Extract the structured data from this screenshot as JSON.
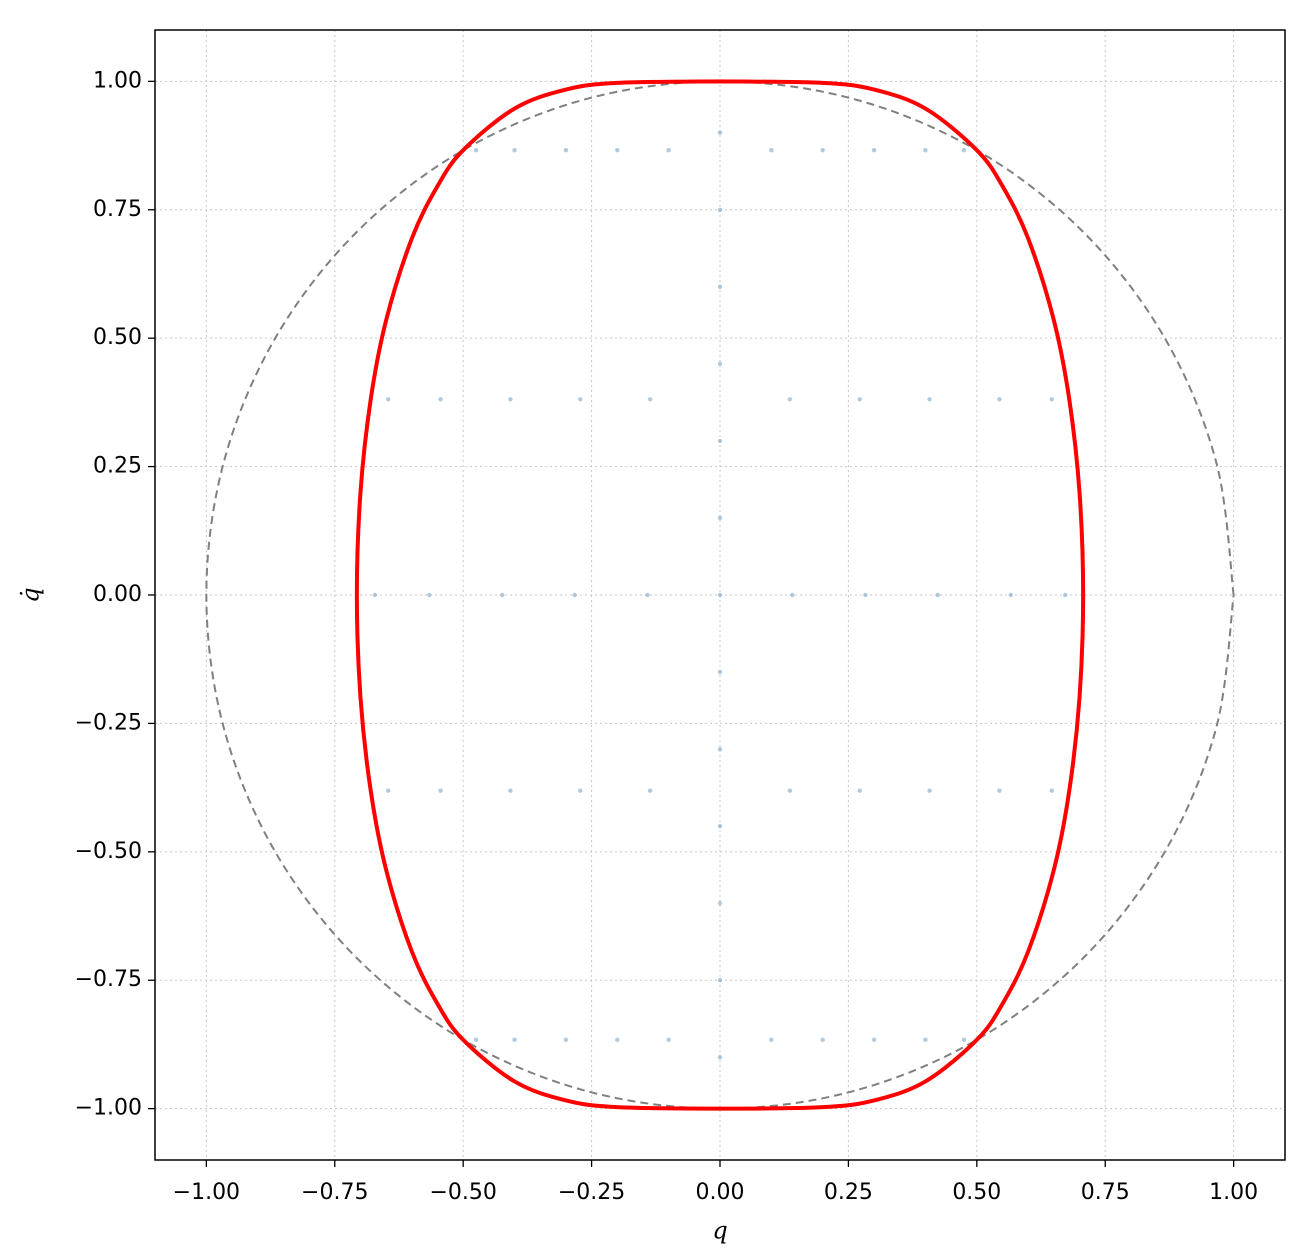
{
  "chart_data": {
    "type": "scatter",
    "xlabel": "q",
    "ylabel": "q̇",
    "xlim": [
      -1.1,
      1.1
    ],
    "ylim": [
      -1.1,
      1.1
    ],
    "xticks": [
      {
        "value": -1,
        "label": "−1.00"
      },
      {
        "value": -0.75,
        "label": "−0.75"
      },
      {
        "value": -0.5,
        "label": "−0.50"
      },
      {
        "value": -0.25,
        "label": "−0.25"
      },
      {
        "value": 0,
        "label": "0.00"
      },
      {
        "value": 0.25,
        "label": "0.25"
      },
      {
        "value": 0.5,
        "label": "0.50"
      },
      {
        "value": 0.75,
        "label": "0.75"
      },
      {
        "value": 1,
        "label": "1.00"
      }
    ],
    "yticks": [
      {
        "value": -1,
        "label": "−1.00"
      },
      {
        "value": -0.75,
        "label": "−0.75"
      },
      {
        "value": -0.5,
        "label": "−0.50"
      },
      {
        "value": -0.25,
        "label": "−0.25"
      },
      {
        "value": 0,
        "label": "0.00"
      },
      {
        "value": 0.25,
        "label": "0.25"
      },
      {
        "value": 0.5,
        "label": "0.50"
      },
      {
        "value": 0.75,
        "label": "0.75"
      },
      {
        "value": 1,
        "label": "1.00"
      }
    ],
    "grid": true,
    "series": [
      {
        "type": "scatter",
        "color": "#7ea7c8",
        "x": [
          0.1,
          -0.1,
          0.1,
          -0.1,
          0.136,
          -0.136,
          0.136,
          -0.136,
          0.141,
          -0.141,
          0.2,
          -0.2,
          0.2,
          -0.2,
          0.272,
          -0.272,
          0.272,
          -0.272,
          0.283,
          -0.283,
          0.3,
          -0.3,
          0.3,
          -0.3,
          0.408,
          -0.408,
          0.408,
          -0.408,
          0.424,
          -0.424,
          0.4,
          -0.4,
          0.4,
          -0.4,
          0.544,
          -0.544,
          0.544,
          -0.544,
          0.566,
          -0.566,
          0.475,
          -0.475,
          0.475,
          -0.475,
          0.646,
          -0.646,
          0.646,
          -0.646,
          0.672,
          -0.672,
          0,
          0,
          0,
          0,
          0,
          0,
          0,
          0,
          0,
          0,
          0,
          0,
          0
        ],
        "y": [
          0.866,
          0.866,
          -0.866,
          -0.866,
          0.381,
          0.381,
          -0.381,
          -0.381,
          0,
          0,
          0.866,
          0.866,
          -0.866,
          -0.866,
          0.381,
          0.381,
          -0.381,
          -0.381,
          0,
          0,
          0.866,
          0.866,
          -0.866,
          -0.866,
          0.381,
          0.381,
          -0.381,
          -0.381,
          0,
          0,
          0.866,
          0.866,
          -0.866,
          -0.866,
          0.381,
          0.381,
          -0.381,
          -0.381,
          0,
          0,
          0.866,
          0.866,
          -0.866,
          -0.866,
          0.381,
          0.381,
          -0.381,
          -0.381,
          0,
          0,
          -0.9,
          -0.75,
          -0.6,
          -0.45,
          -0.3,
          -0.15,
          0,
          0.15,
          0.3,
          0.45,
          0.6,
          0.75,
          0.9
        ]
      },
      {
        "type": "line",
        "color": "#ff0000",
        "linestyle": "solid",
        "x": [
          0,
          0.2,
          0.3,
          0.4,
          0.5,
          0.55,
          0.6,
          0.65,
          0.68,
          0.7,
          0.707,
          0.7,
          0.68,
          0.65,
          0.6,
          0.55,
          0.5,
          0.4,
          0.3,
          0.2,
          0,
          -0.2,
          -0.3,
          -0.4,
          -0.5,
          -0.55,
          -0.6,
          -0.65,
          -0.68,
          -0.7,
          -0.707,
          -0.7,
          -0.68,
          -0.65,
          -0.6,
          -0.55,
          -0.5,
          -0.4,
          -0.3,
          -0.2,
          0
        ],
        "y": [
          1,
          0.997,
          0.984,
          0.947,
          0.866,
          0.796,
          0.694,
          0.535,
          0.381,
          0.199,
          0,
          -0.199,
          -0.381,
          -0.535,
          -0.694,
          -0.796,
          -0.866,
          -0.947,
          -0.984,
          -0.997,
          -1,
          -0.997,
          -0.984,
          -0.947,
          -0.866,
          -0.796,
          -0.694,
          -0.535,
          -0.381,
          -0.199,
          0,
          0.199,
          0.381,
          0.535,
          0.694,
          0.796,
          0.866,
          0.947,
          0.984,
          0.997,
          1
        ]
      },
      {
        "type": "line",
        "color": "#808080",
        "linestyle": "dashed",
        "x": [
          1,
          0.966,
          0.866,
          0.707,
          0.5,
          0.259,
          0,
          -0.259,
          -0.5,
          -0.707,
          -0.866,
          -0.966,
          -1,
          -0.966,
          -0.866,
          -0.707,
          -0.5,
          -0.259,
          0,
          0.259,
          0.5,
          0.707,
          0.866,
          0.966,
          1
        ],
        "y": [
          0,
          0.259,
          0.5,
          0.707,
          0.866,
          0.966,
          1,
          0.966,
          0.866,
          0.707,
          0.5,
          0.259,
          0,
          -0.259,
          -0.5,
          -0.707,
          -0.866,
          -0.966,
          -1,
          -0.966,
          -0.866,
          -0.707,
          -0.5,
          -0.259,
          0
        ]
      }
    ]
  }
}
